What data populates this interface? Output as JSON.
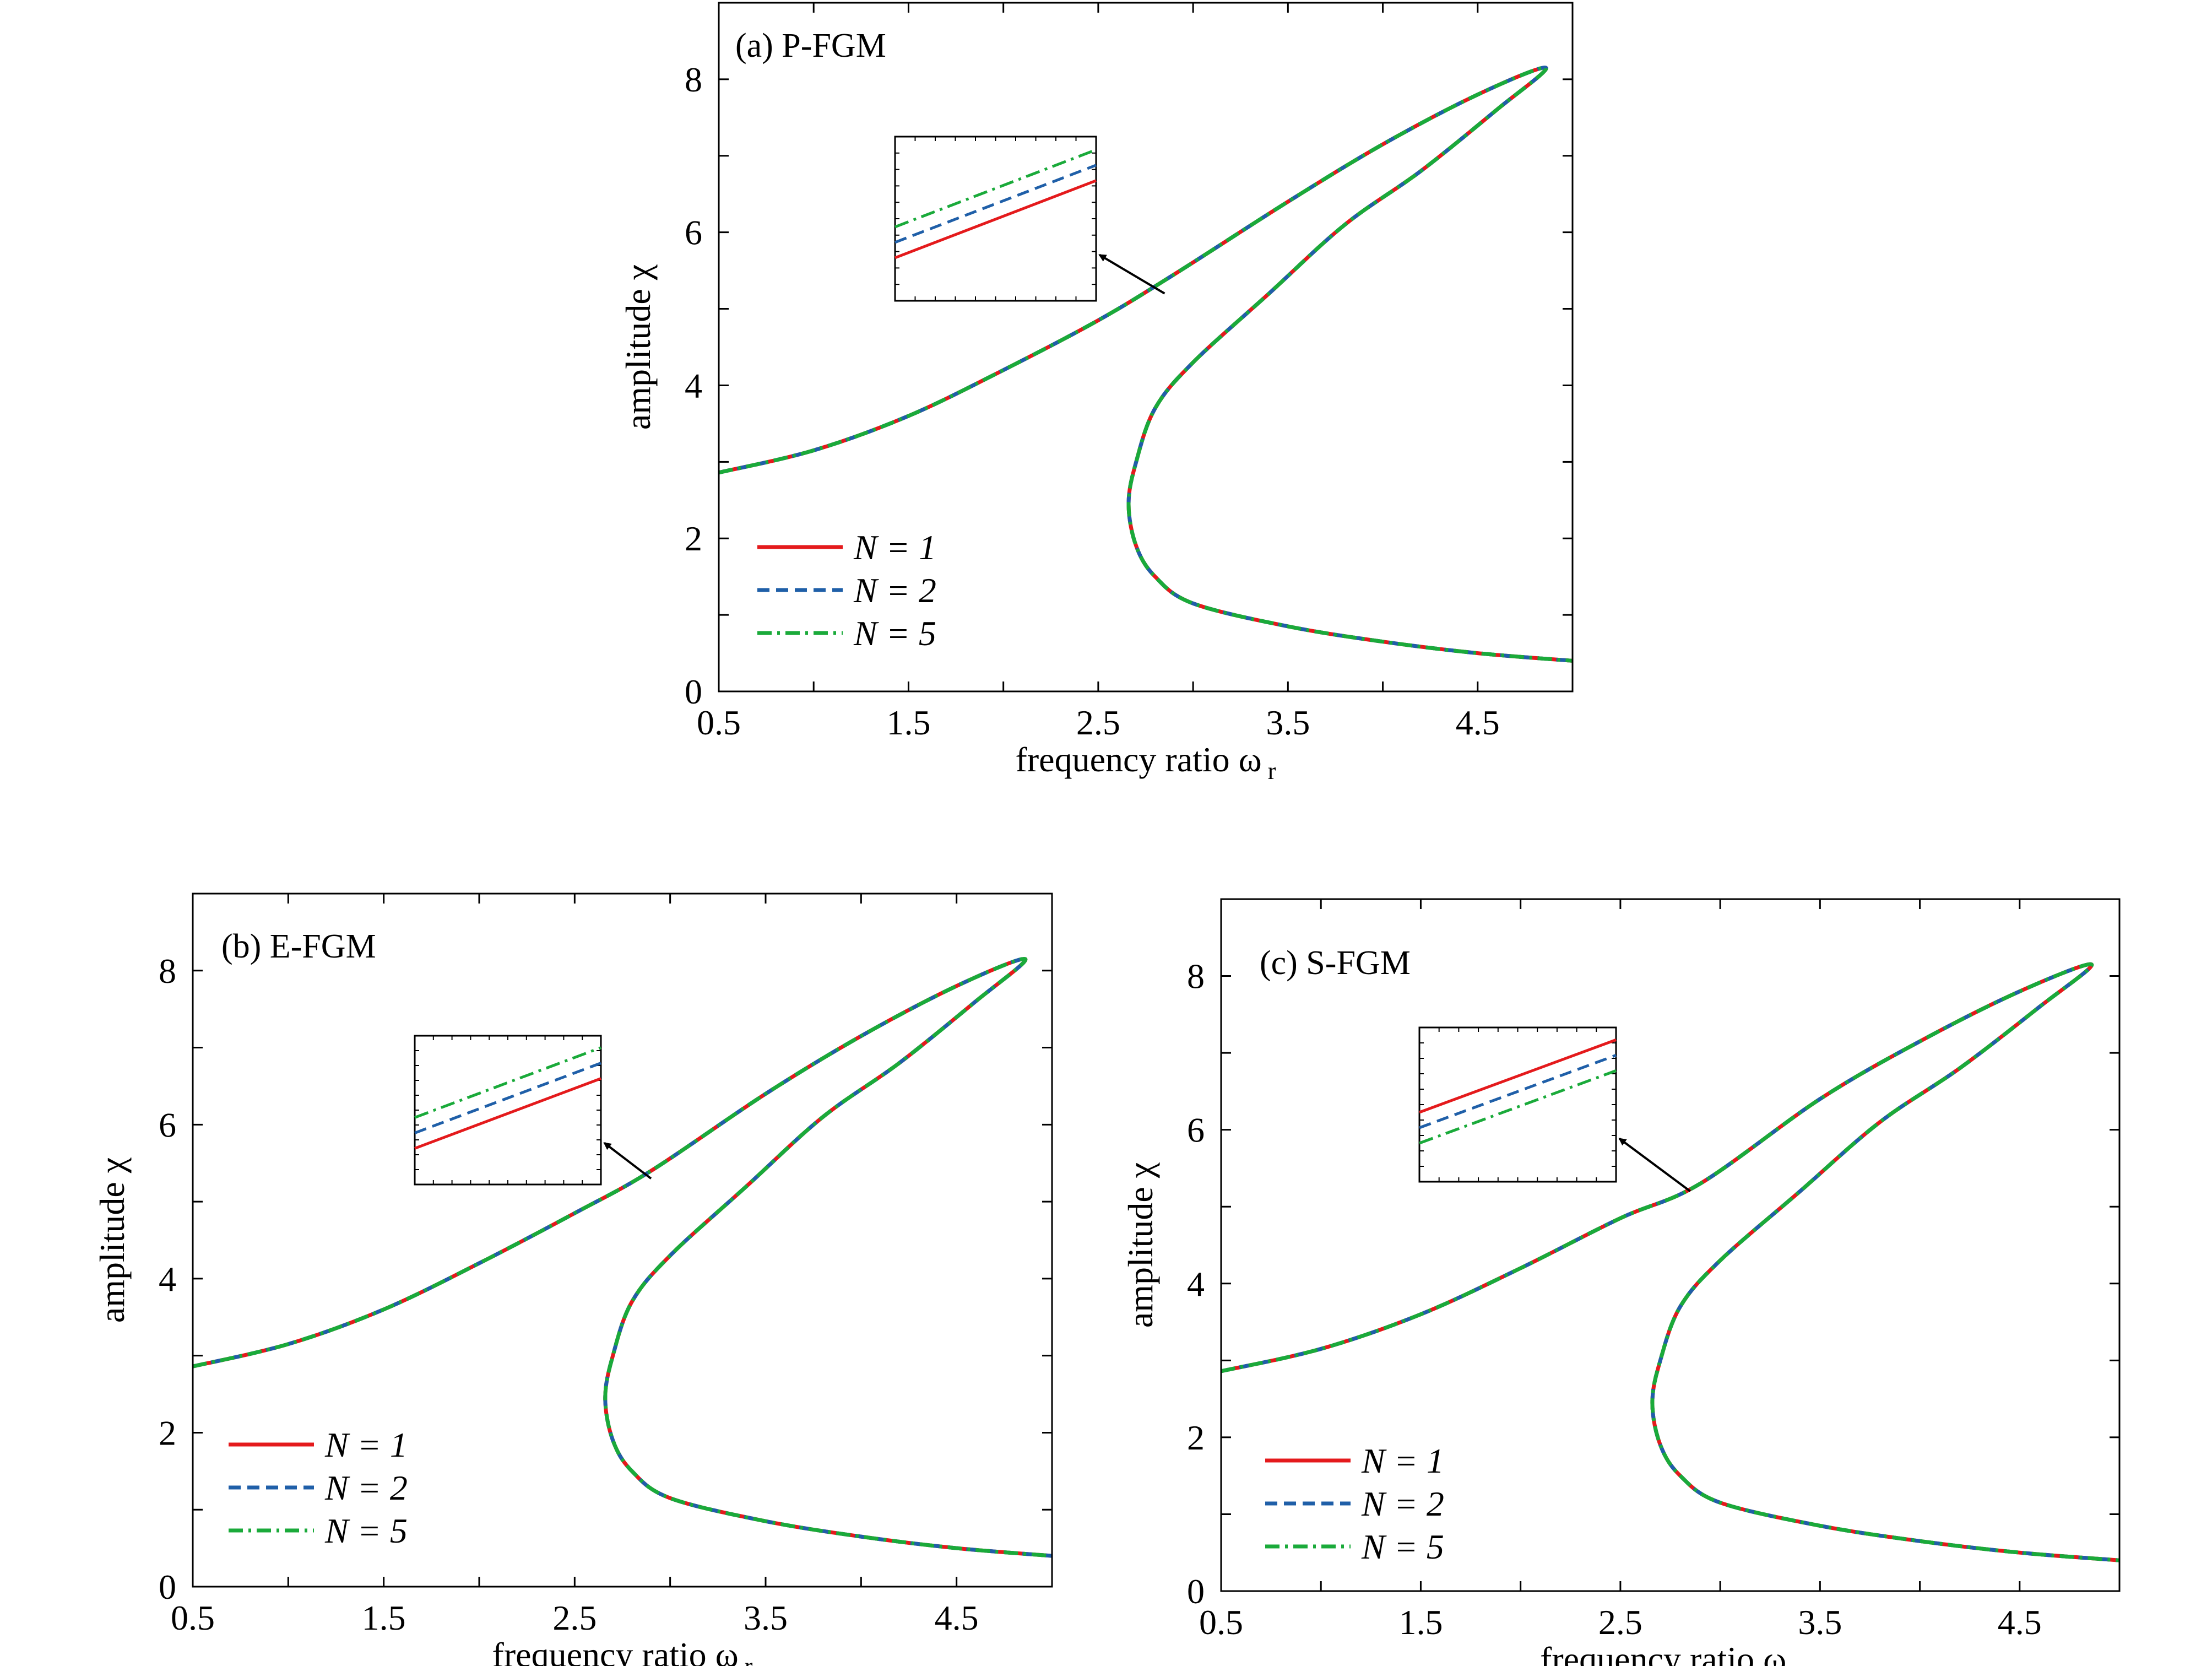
{
  "colors": {
    "n1": "#e41a1c",
    "n2": "#1f5fa8",
    "n5": "#1aaa3a",
    "axis": "#000000",
    "arrow": "#000000"
  },
  "chart_data": [
    {
      "type": "line",
      "panel_label": "(a) P-FGM",
      "xlabel": "frequency ratio ω",
      "xlabel_sub": "r",
      "ylabel": "amplitude χ",
      "xlim": [
        0.5,
        5.0
      ],
      "ylim": [
        0,
        9
      ],
      "xticks": [
        0.5,
        1.5,
        2.5,
        3.5,
        4.5
      ],
      "yticks": [
        0,
        2,
        4,
        6,
        8
      ],
      "grid": false,
      "legend_position": "lower-left",
      "series": [
        {
          "name": "N = 1",
          "style": "solid"
        },
        {
          "name": "N = 2",
          "style": "dashed"
        },
        {
          "name": "N = 5",
          "style": "dash-dot"
        }
      ],
      "curve": {
        "upper_branch": [
          [
            0.5,
            2.86
          ],
          [
            1.0,
            3.15
          ],
          [
            1.5,
            3.6
          ],
          [
            2.0,
            4.2
          ],
          [
            2.5,
            4.85
          ],
          [
            2.9,
            5.45
          ],
          [
            3.5,
            6.4
          ],
          [
            4.0,
            7.15
          ],
          [
            4.5,
            7.8
          ],
          [
            4.86,
            8.15
          ]
        ],
        "lower_branch": [
          [
            4.86,
            8.15
          ],
          [
            4.6,
            7.6
          ],
          [
            4.2,
            6.8
          ],
          [
            3.8,
            6.1
          ],
          [
            3.4,
            5.2
          ],
          [
            3.0,
            4.3
          ],
          [
            2.8,
            3.7
          ],
          [
            2.7,
            3.0
          ],
          [
            2.66,
            2.45
          ],
          [
            2.7,
            1.9
          ],
          [
            2.8,
            1.5
          ],
          [
            3.0,
            1.15
          ],
          [
            3.5,
            0.85
          ],
          [
            4.0,
            0.65
          ],
          [
            4.5,
            0.5
          ],
          [
            5.0,
            0.4
          ]
        ]
      },
      "inset_order_top_to_bottom": [
        "N = 5",
        "N = 2",
        "N = 1"
      ],
      "zoom_point": [
        2.85,
        5.2
      ]
    },
    {
      "type": "line",
      "panel_label": "(b) E-FGM",
      "xlabel": "frequency ratio ω",
      "xlabel_sub": "r",
      "ylabel": "amplitude χ",
      "xlim": [
        0.5,
        5.0
      ],
      "ylim": [
        0,
        9
      ],
      "xticks": [
        0.5,
        1.5,
        2.5,
        3.5,
        4.5
      ],
      "yticks": [
        0,
        2,
        4,
        6,
        8
      ],
      "grid": false,
      "legend_position": "lower-left",
      "series": [
        {
          "name": "N = 1",
          "style": "solid"
        },
        {
          "name": "N = 2",
          "style": "dashed"
        },
        {
          "name": "N = 5",
          "style": "dash-dot"
        }
      ],
      "curve": {
        "upper_branch": [
          [
            0.5,
            2.86
          ],
          [
            1.0,
            3.15
          ],
          [
            1.5,
            3.6
          ],
          [
            2.0,
            4.2
          ],
          [
            2.5,
            4.85
          ],
          [
            2.9,
            5.4
          ],
          [
            3.5,
            6.4
          ],
          [
            4.0,
            7.15
          ],
          [
            4.5,
            7.8
          ],
          [
            4.86,
            8.15
          ]
        ],
        "lower_branch": [
          [
            4.86,
            8.15
          ],
          [
            4.6,
            7.6
          ],
          [
            4.2,
            6.8
          ],
          [
            3.8,
            6.1
          ],
          [
            3.4,
            5.2
          ],
          [
            3.0,
            4.3
          ],
          [
            2.8,
            3.7
          ],
          [
            2.7,
            3.0
          ],
          [
            2.66,
            2.45
          ],
          [
            2.7,
            1.9
          ],
          [
            2.8,
            1.5
          ],
          [
            3.0,
            1.15
          ],
          [
            3.5,
            0.85
          ],
          [
            4.0,
            0.65
          ],
          [
            4.5,
            0.5
          ],
          [
            5.0,
            0.4
          ]
        ]
      },
      "inset_order_top_to_bottom": [
        "N = 5",
        "N = 2",
        "N = 1"
      ],
      "zoom_point": [
        2.9,
        5.3
      ]
    },
    {
      "type": "line",
      "panel_label": "(c) S-FGM",
      "xlabel": "frequency ratio ω",
      "xlabel_sub": "r",
      "ylabel": "amplitude χ",
      "xlim": [
        0.5,
        5.0
      ],
      "ylim": [
        0,
        9
      ],
      "xticks": [
        0.5,
        1.5,
        2.5,
        3.5,
        4.5
      ],
      "yticks": [
        0,
        2,
        4,
        6,
        8
      ],
      "grid": false,
      "legend_position": "lower-left",
      "series": [
        {
          "name": "N = 1",
          "style": "solid"
        },
        {
          "name": "N = 2",
          "style": "dashed"
        },
        {
          "name": "N = 5",
          "style": "dash-dot"
        }
      ],
      "curve": {
        "upper_branch": [
          [
            0.5,
            2.86
          ],
          [
            1.0,
            3.15
          ],
          [
            1.5,
            3.6
          ],
          [
            2.0,
            4.2
          ],
          [
            2.5,
            4.85
          ],
          [
            2.9,
            5.3
          ],
          [
            3.5,
            6.4
          ],
          [
            4.0,
            7.15
          ],
          [
            4.5,
            7.8
          ],
          [
            4.86,
            8.15
          ]
        ],
        "lower_branch": [
          [
            4.86,
            8.15
          ],
          [
            4.6,
            7.6
          ],
          [
            4.2,
            6.8
          ],
          [
            3.8,
            6.1
          ],
          [
            3.4,
            5.2
          ],
          [
            3.0,
            4.3
          ],
          [
            2.8,
            3.7
          ],
          [
            2.7,
            3.0
          ],
          [
            2.66,
            2.45
          ],
          [
            2.7,
            1.9
          ],
          [
            2.8,
            1.5
          ],
          [
            3.0,
            1.15
          ],
          [
            3.5,
            0.85
          ],
          [
            4.0,
            0.65
          ],
          [
            4.5,
            0.5
          ],
          [
            5.0,
            0.4
          ]
        ]
      },
      "inset_order_top_to_bottom": [
        "N = 1",
        "N = 2",
        "N = 5"
      ],
      "zoom_point": [
        2.85,
        5.2
      ]
    }
  ]
}
